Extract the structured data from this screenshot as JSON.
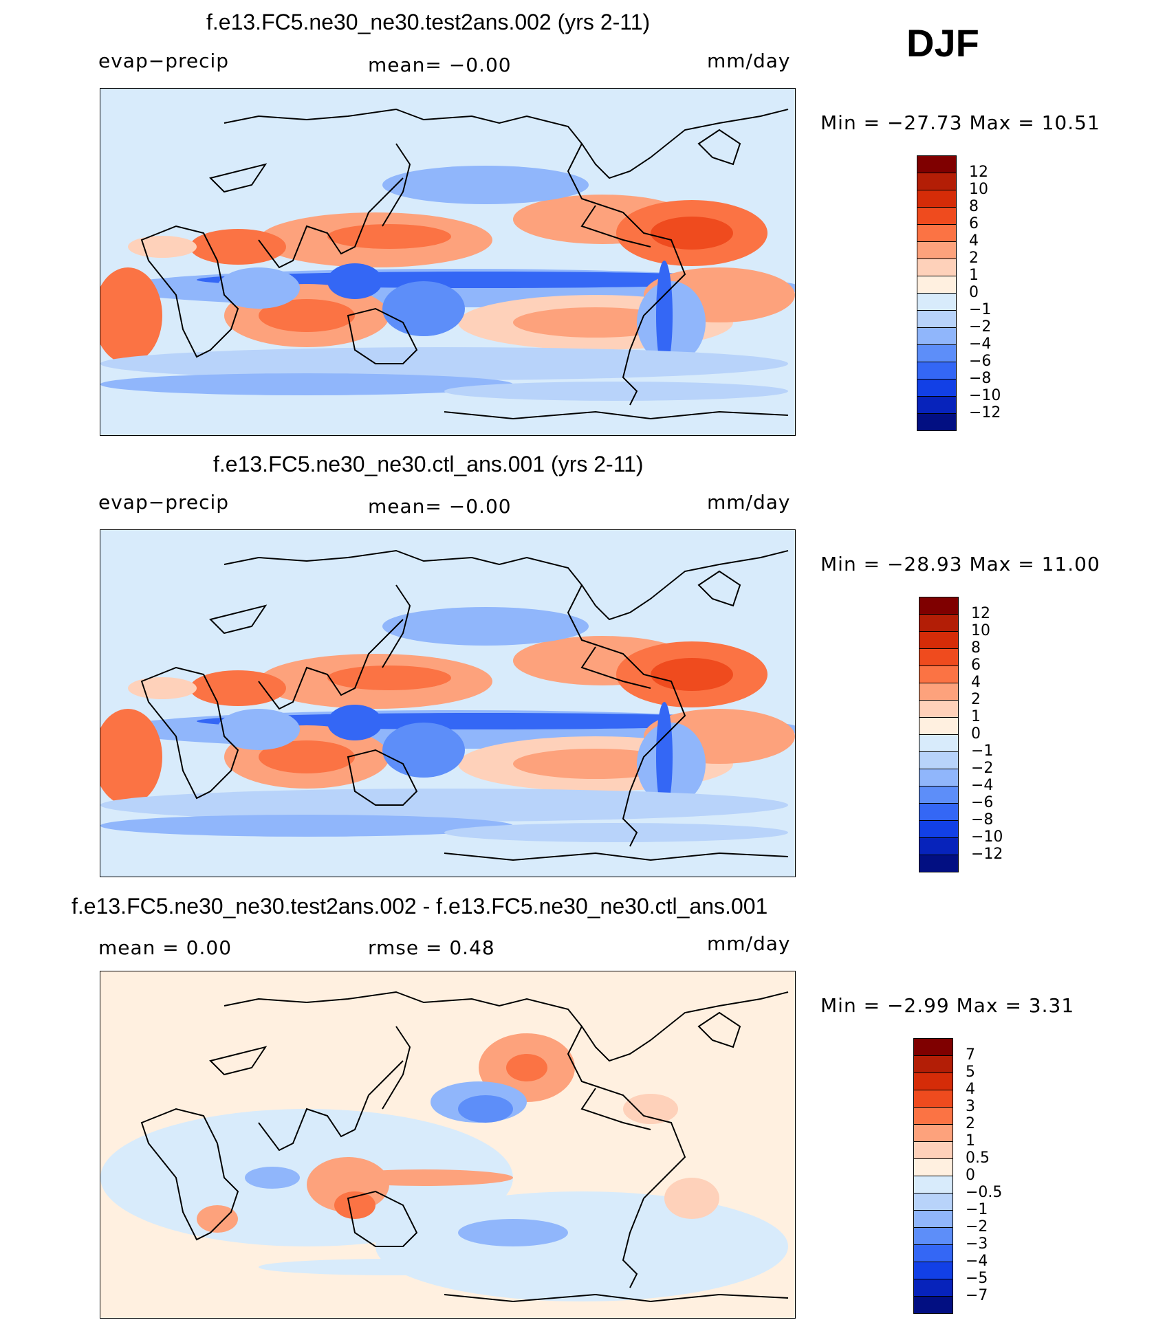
{
  "season": "DJF",
  "panels": [
    {
      "title": "f.e13.FC5.ne30_ne30.test2ans.002 (yrs 2-11)",
      "left_label": "evap−precip",
      "center_label": "mean=   −0.00",
      "units": "mm/day",
      "minmax": "Min  =  −27.73  Max  =    10.51",
      "levels": [
        "12",
        "10",
        "8",
        "6",
        "4",
        "2",
        "1",
        "0",
        "−1",
        "−2",
        "−4",
        "−6",
        "−8",
        "−10",
        "−12"
      ],
      "colors": [
        "#7f0000",
        "#b31e06",
        "#d52c08",
        "#ef4b1e",
        "#fb7344",
        "#fda27c",
        "#fed1ba",
        "#fff0e0",
        "#d8ebfb",
        "#b8d3fa",
        "#90b6fb",
        "#5d8ef9",
        "#3467f5",
        "#1240e6",
        "#0723bb",
        "#020f82"
      ],
      "map_kind": "field"
    },
    {
      "title": "f.e13.FC5.ne30_ne30.ctl_ans.001 (yrs 2-11)",
      "left_label": "evap−precip",
      "center_label": "mean=   −0.00",
      "units": "mm/day",
      "minmax": "Min  =  −28.93  Max  =    11.00",
      "levels": [
        "12",
        "10",
        "8",
        "6",
        "4",
        "2",
        "1",
        "0",
        "−1",
        "−2",
        "−4",
        "−6",
        "−8",
        "−10",
        "−12"
      ],
      "colors": [
        "#7f0000",
        "#b31e06",
        "#d52c08",
        "#ef4b1e",
        "#fb7344",
        "#fda27c",
        "#fed1ba",
        "#fff0e0",
        "#d8ebfb",
        "#b8d3fa",
        "#90b6fb",
        "#5d8ef9",
        "#3467f5",
        "#1240e6",
        "#0723bb",
        "#020f82"
      ],
      "map_kind": "field"
    },
    {
      "title": "f.e13.FC5.ne30_ne30.test2ans.002 - f.e13.FC5.ne30_ne30.ctl_ans.001",
      "left_label": "mean  =     0.00",
      "center_label": "rmse  =     0.48",
      "units": "mm/day",
      "minmax": "Min  =    −2.99  Max  =     3.31",
      "levels": [
        "7",
        "5",
        "4",
        "3",
        "2",
        "1",
        "0.5",
        "0",
        "−0.5",
        "−1",
        "−2",
        "−3",
        "−4",
        "−5",
        "−7"
      ],
      "colors": [
        "#7f0000",
        "#b31e06",
        "#d52c08",
        "#ef4b1e",
        "#fb7344",
        "#fda27c",
        "#fed1ba",
        "#fff0e0",
        "#d8ebfb",
        "#b8d3fa",
        "#90b6fb",
        "#5d8ef9",
        "#3467f5",
        "#1240e6",
        "#0723bb",
        "#020f82"
      ],
      "map_kind": "diff"
    }
  ]
}
